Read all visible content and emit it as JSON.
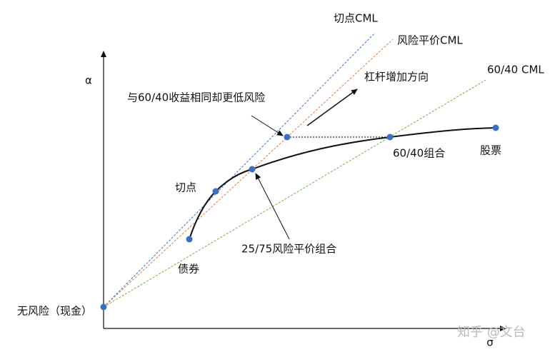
{
  "axes": {
    "y_label": "α",
    "x_label": "σ"
  },
  "lines": [
    {
      "label": "切点CML"
    },
    {
      "label": "风险平价CML"
    },
    {
      "label": "60/40 CML"
    }
  ],
  "points": [
    {
      "label": "无风险（现金）"
    },
    {
      "label": "债券"
    },
    {
      "label": "切点"
    },
    {
      "label": "25/75风险平价组合"
    },
    {
      "label": "60/40组合"
    },
    {
      "label": "股票"
    }
  ],
  "annotations": [
    {
      "label": "杠杆增加方向"
    },
    {
      "label": "与60/40收益相同却更低风险"
    }
  ],
  "watermark": "知乎 @文台"
}
